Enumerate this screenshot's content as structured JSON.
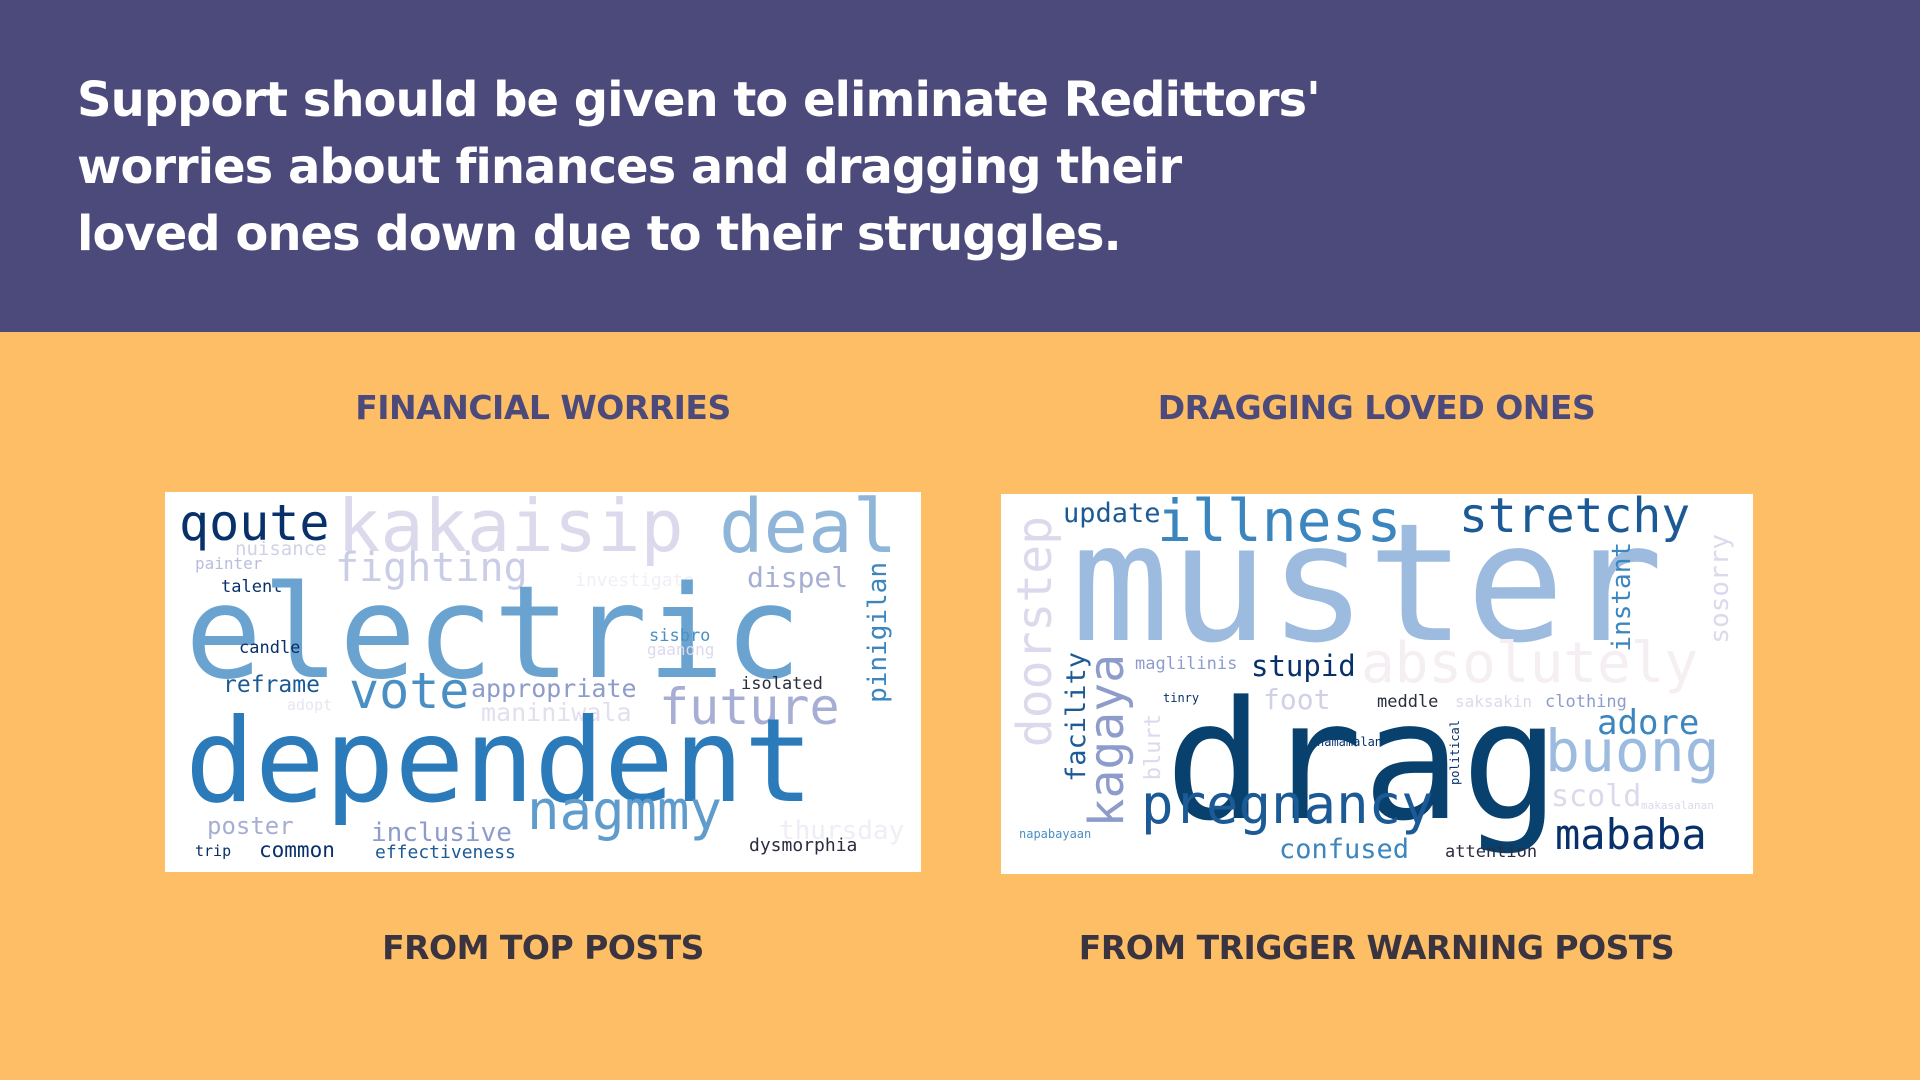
{
  "headline": "Support should be given to eliminate Redittors' worries about finances and dragging their loved ones down due to their struggles.",
  "colors": {
    "header_bg": "#4b4a7b",
    "body_bg": "#fdbe65",
    "title_color": "#4b4a7b",
    "source_color": "#3a3340"
  },
  "panels": [
    {
      "title": "FINANCIAL WORRIES",
      "source": "FROM TOP POSTS",
      "words": [
        "qoute",
        "kakaisip",
        "deal",
        "nuisance",
        "painter",
        "fighting",
        "investigate",
        "dispel",
        "talent",
        "electric",
        "pinigilan",
        "candle",
        "sisbro",
        "gaanong",
        "reframe",
        "vote",
        "appropriate",
        "isolated",
        "adopt",
        "maniniwala",
        "future",
        "dependent",
        "nagmmy",
        "poster",
        "inclusive",
        "thursday",
        "trip",
        "common",
        "effectiveness",
        "dysmorphia"
      ]
    },
    {
      "title": "DRAGGING LOVED ONES",
      "source": "FROM TRIGGER WARNING POSTS",
      "words": [
        "update",
        "illness",
        "stretchy",
        "doorstep",
        "muster",
        "sosorry",
        "instant",
        "absolutely",
        "facility",
        "kagaya",
        "maglilinis",
        "stupid",
        "blurt",
        "tinry",
        "foot",
        "meddle",
        "saksakin",
        "clothing",
        "adore",
        "namamalan",
        "political",
        "drag",
        "buong",
        "scold",
        "makasalanan",
        "pregnancy",
        "napabayaan",
        "confused",
        "attention",
        "mababa"
      ]
    }
  ]
}
